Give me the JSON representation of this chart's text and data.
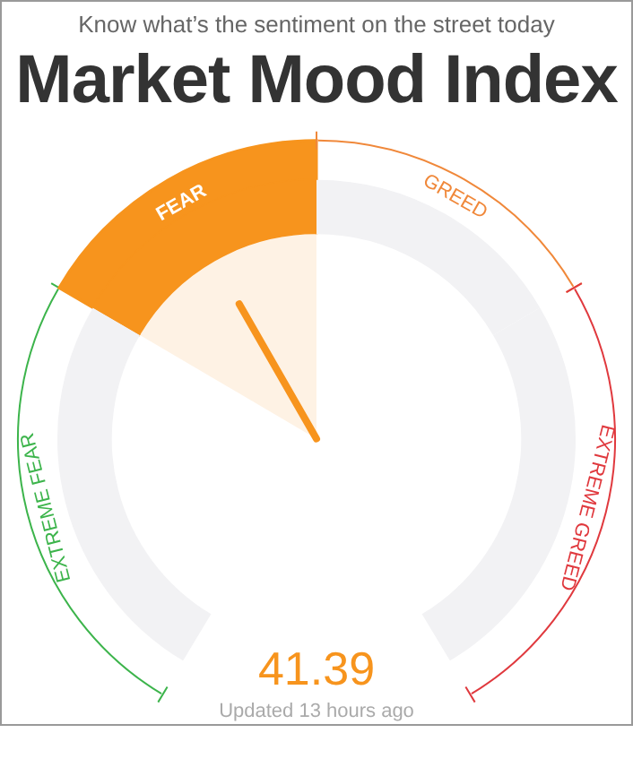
{
  "chart_data": {
    "type": "donut",
    "title": "Market Mood Index",
    "subtitle": "Know what’s the sentiment on the street today",
    "categories": [
      "EXTREME FEAR",
      "FEAR",
      "GREED",
      "EXTREME GREED"
    ],
    "values": [
      30,
      20,
      20,
      30
    ],
    "colors": [
      "#f2f2f4",
      "#f7941d",
      "#f2f2f4",
      "#f2f2f4"
    ],
    "needle": "FEAR",
    "annotations": [
      "41.39",
      "Updated 13 hours ago"
    ]
  }
}
